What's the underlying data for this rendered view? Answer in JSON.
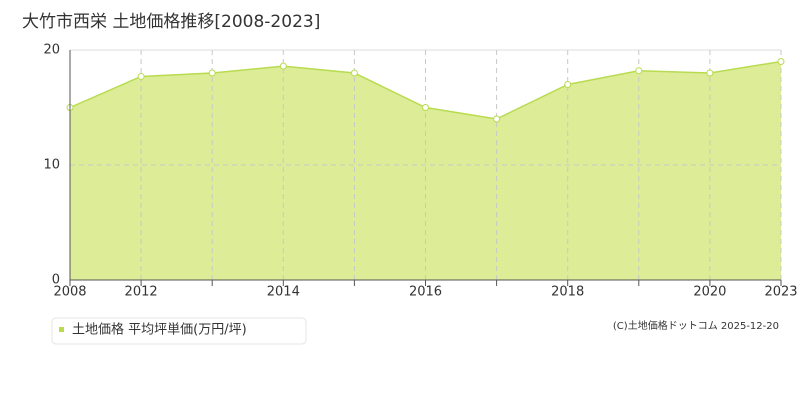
{
  "chart_data": {
    "type": "area",
    "title": "大竹市西栄 土地価格推移[2008-2023]",
    "categories": [
      "2008",
      "2012",
      null,
      "2014",
      null,
      "2016",
      null,
      "2018",
      null,
      "2020",
      "2023"
    ],
    "series": [
      {
        "name": "土地価格 平均坪単価(万円/坪)",
        "color": "#b8db50",
        "values": [
          15.0,
          17.7,
          18.0,
          18.6,
          18.0,
          15.0,
          14.0,
          17.0,
          18.2,
          18.0,
          19.0
        ]
      }
    ],
    "ylim": [
      0,
      20
    ],
    "yticks": [
      0,
      10,
      20
    ],
    "grid": true,
    "copyright": "(C)土地価格ドットコム 2025-12-20"
  }
}
